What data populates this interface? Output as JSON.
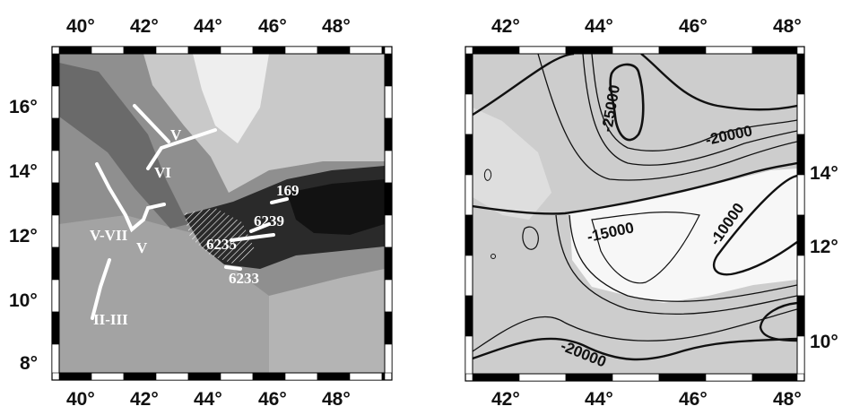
{
  "left_map": {
    "x_ticks": [
      "40°",
      "42°",
      "44°",
      "46°",
      "48°"
    ],
    "y_ticks": [
      "16°",
      "14°",
      "12°",
      "10°",
      "8°"
    ],
    "labels": {
      "v_top": "V",
      "vi": "VI",
      "v_vii": "V-VII",
      "v_small": "V",
      "ii_iii": "II-III",
      "l169": "169",
      "l6239": "6239",
      "l6235": "6235",
      "l6233": "6233"
    }
  },
  "right_map": {
    "x_ticks": [
      "42°",
      "44°",
      "46°",
      "48°"
    ],
    "y_ticks": [
      "14°",
      "12°",
      "10°"
    ],
    "contour_labels": {
      "c_25000": "-25000",
      "c_20000_top": "-20000",
      "c_15000": "-15000",
      "c_10000": "-10000",
      "c_20000_bottom": "-20000"
    }
  }
}
